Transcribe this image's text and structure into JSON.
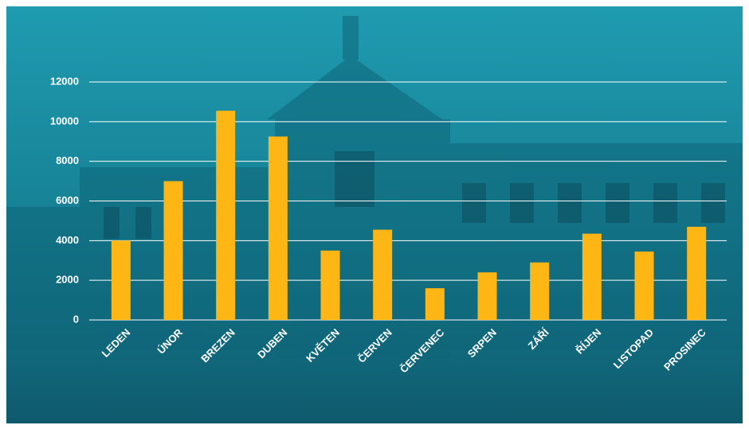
{
  "chart_data": {
    "type": "bar",
    "categories": [
      "LEDEN",
      "ÚNOR",
      "BREZEN",
      "DUBEN",
      "KVĚTEN",
      "ČERVEN",
      "ČERVENEC",
      "SRPEN",
      "ZÁŘÍ",
      "ŘÍJEN",
      "LISTOPAD",
      "PROSINEC"
    ],
    "values": [
      4000,
      7000,
      10550,
      9250,
      3500,
      4550,
      1600,
      2400,
      2900,
      4350,
      3450,
      4700
    ],
    "color": "#fdb614",
    "ylim": [
      0,
      12000
    ],
    "yticks": [
      0,
      2000,
      4000,
      6000,
      8000,
      10000,
      12000
    ],
    "grid": true
  }
}
